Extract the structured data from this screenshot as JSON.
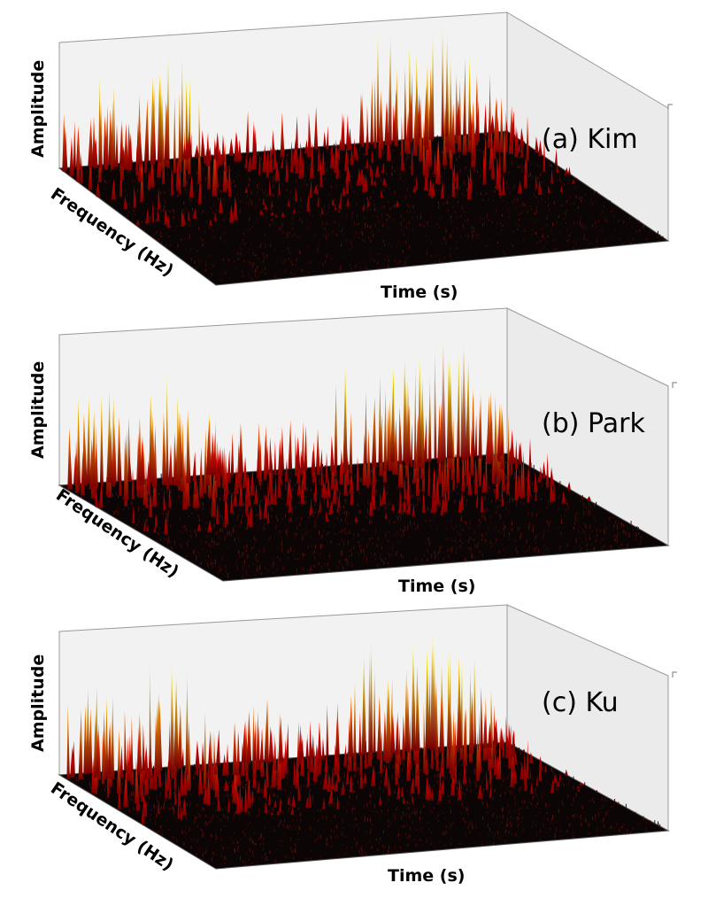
{
  "chart_data": [
    {
      "type": "surface3d",
      "title": "(a) Kim",
      "xlabel": "Time (s)",
      "ylabel": "Frequency (Hz)",
      "zlabel": "Amplitude",
      "grid": false,
      "colormap": "hot",
      "legend_placement": "none",
      "time_bins": 26,
      "peak_profile": [
        0.45,
        0.55,
        0.75,
        0.4,
        0.55,
        0.85,
        0.9,
        0.2,
        0.2,
        0.3,
        0.35,
        0.25,
        0.45,
        0.3,
        0.4,
        0.2,
        0.3,
        0.6,
        0.9,
        0.75,
        0.9,
        0.85,
        0.95,
        0.6,
        0.55,
        0.25
      ],
      "floor_level": 0.06
    },
    {
      "type": "surface3d",
      "title": "(b) Park",
      "xlabel": "Time (s)",
      "ylabel": "Frequency (Hz)",
      "zlabel": "Amplitude",
      "grid": false,
      "colormap": "hot",
      "legend_placement": "none",
      "time_bins": 26,
      "peak_profile": [
        0.55,
        0.7,
        0.75,
        0.5,
        0.6,
        0.9,
        0.95,
        0.55,
        0.5,
        0.45,
        0.5,
        0.4,
        0.35,
        0.45,
        0.45,
        0.55,
        0.75,
        0.8,
        0.95,
        1.0,
        0.85,
        0.9,
        1.0,
        0.95,
        0.6,
        0.3
      ],
      "floor_level": 0.09
    },
    {
      "type": "surface3d",
      "title": "(c) Ku",
      "xlabel": "Time (s)",
      "ylabel": "Frequency (Hz)",
      "zlabel": "Amplitude",
      "grid": false,
      "colormap": "hot",
      "legend_placement": "none",
      "time_bins": 26,
      "peak_profile": [
        0.6,
        0.75,
        0.7,
        0.45,
        0.55,
        0.85,
        0.9,
        0.3,
        0.35,
        0.55,
        0.6,
        0.5,
        0.45,
        0.35,
        0.3,
        0.45,
        0.75,
        0.85,
        0.9,
        0.7,
        0.85,
        0.95,
        1.0,
        0.7,
        0.45,
        0.2
      ],
      "floor_level": 0.08
    }
  ]
}
